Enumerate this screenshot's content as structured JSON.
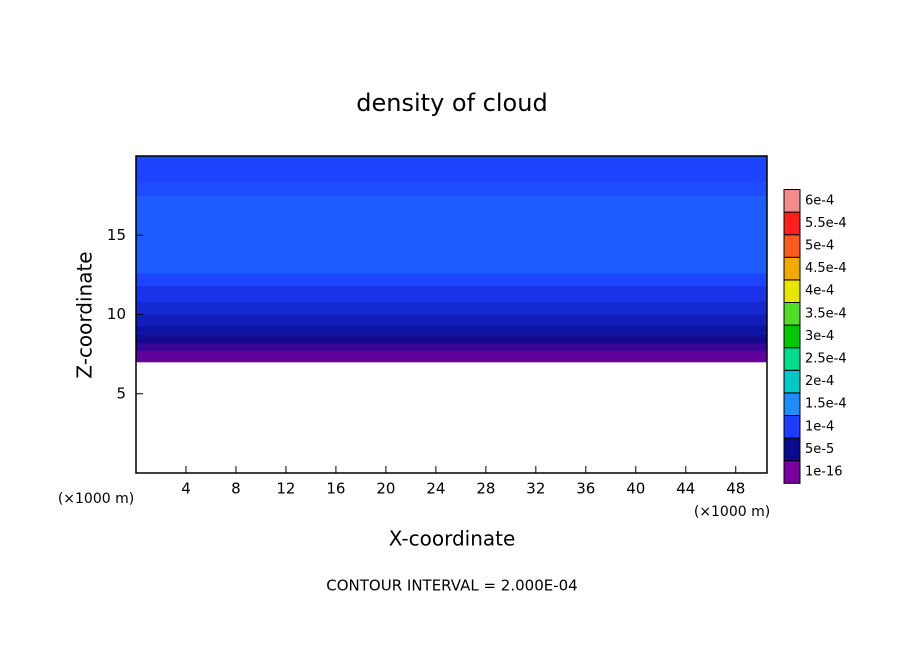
{
  "chart_data": {
    "type": "contour",
    "title": "density of cloud",
    "xlabel": "X-coordinate",
    "ylabel": "Z-coordinate",
    "x_unit": "(×1000 m)",
    "footer": "CONTOUR INTERVAL = 2.000E-04",
    "xlim": [
      0,
      50.5
    ],
    "ylim": [
      0,
      20
    ],
    "xticks": [
      4,
      8,
      12,
      16,
      20,
      24,
      28,
      32,
      36,
      40,
      44,
      48
    ],
    "yticks": [
      5,
      10,
      15
    ],
    "layers": [
      {
        "zlim": [
          7.0,
          7.7
        ],
        "value": 1e-05
      },
      {
        "zlim": [
          7.7,
          8.2
        ],
        "value": 3e-05
      },
      {
        "zlim": [
          8.2,
          8.7
        ],
        "value": 4.5e-05
      },
      {
        "zlim": [
          8.7,
          9.3
        ],
        "value": 6e-05
      },
      {
        "zlim": [
          9.3,
          10.0
        ],
        "value": 7e-05
      },
      {
        "zlim": [
          10.0,
          10.8
        ],
        "value": 8e-05
      },
      {
        "zlim": [
          10.8,
          11.8
        ],
        "value": 9e-05
      },
      {
        "zlim": [
          11.8,
          12.6
        ],
        "value": 0.000105
      },
      {
        "zlim": [
          12.6,
          17.5
        ],
        "value": 0.00012
      },
      {
        "zlim": [
          17.5,
          18.4
        ],
        "value": 0.00011
      },
      {
        "zlim": [
          18.4,
          20
        ],
        "value": 0.000105
      }
    ],
    "colorbar": [
      {
        "value": 1e-16,
        "label": "1e-16",
        "color": "#7800a0"
      },
      {
        "value": 5e-05,
        "label": "5e-5",
        "color": "#0a0a8c"
      },
      {
        "value": 0.0001,
        "label": "1e-4",
        "color": "#1e3cff"
      },
      {
        "value": 0.00015,
        "label": "1.5e-4",
        "color": "#1e8cff"
      },
      {
        "value": 0.0002,
        "label": "2e-4",
        "color": "#00c8c8"
      },
      {
        "value": 0.00025,
        "label": "2.5e-4",
        "color": "#00dc8c"
      },
      {
        "value": 0.0003,
        "label": "3e-4",
        "color": "#00c800"
      },
      {
        "value": 0.00035,
        "label": "3.5e-4",
        "color": "#50dc28"
      },
      {
        "value": 0.0004,
        "label": "4e-4",
        "color": "#e6e600"
      },
      {
        "value": 0.00045,
        "label": "4.5e-4",
        "color": "#f0aa00"
      },
      {
        "value": 0.0005,
        "label": "5e-4",
        "color": "#fa5a1e"
      },
      {
        "value": 0.00055,
        "label": "5.5e-4",
        "color": "#ff1e1e"
      },
      {
        "value": 0.0006,
        "label": "6e-4",
        "color": "#f08c8c"
      }
    ]
  }
}
